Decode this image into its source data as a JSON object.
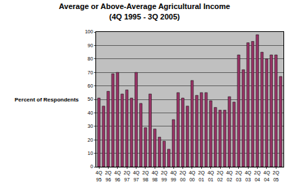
{
  "chart_data": {
    "type": "bar",
    "title": "Average or Above-Average Agricultural Income",
    "subtitle": "(4Q 1995 - 3Q 2005)",
    "ylabel": "Percent of Respondents",
    "categories": [
      "4Q 95",
      null,
      "2Q 96",
      null,
      "4Q 96",
      null,
      "2Q 97",
      null,
      "4Q 97",
      null,
      "2Q 98",
      null,
      "4Q 98",
      null,
      "2Q 99",
      null,
      "4Q 99",
      null,
      "2Q 00",
      null,
      "4Q 00",
      null,
      "2Q 01",
      null,
      "4Q 01",
      null,
      "2Q 02",
      null,
      "4Q 02",
      null,
      "2Q 03",
      null,
      "4Q 03",
      null,
      "2Q 04",
      null,
      "4Q 04",
      null,
      "2Q 05",
      null
    ],
    "values": [
      51,
      45,
      56,
      69,
      70,
      54,
      57,
      51,
      70,
      47,
      29,
      54,
      28,
      22,
      19,
      13,
      35,
      55,
      51,
      45,
      64,
      53,
      55,
      55,
      49,
      44,
      42,
      42,
      52,
      48,
      83,
      72,
      92,
      93,
      98,
      85,
      80,
      83,
      83,
      67
    ],
    "color": "#993366",
    "ylim": [
      0,
      100
    ],
    "yticks": [
      0,
      10,
      20,
      30,
      40,
      50,
      60,
      70,
      80,
      90,
      100
    ],
    "grid": true
  }
}
